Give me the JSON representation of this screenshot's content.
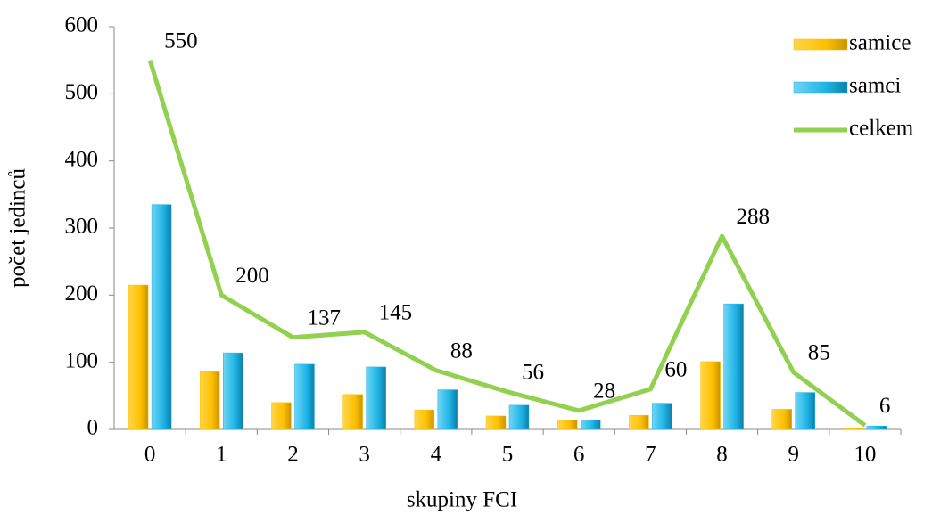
{
  "chart_data": {
    "type": "bar-line",
    "x_label": "skupiny FCI",
    "y_label": "počet jedinců",
    "categories": [
      "0",
      "1",
      "2",
      "3",
      "4",
      "5",
      "6",
      "7",
      "8",
      "9",
      "10"
    ],
    "series": [
      {
        "name": "samice",
        "type": "bar",
        "color": "#FFC000",
        "values": [
          215,
          86,
          40,
          52,
          29,
          20,
          14,
          21,
          101,
          30,
          1
        ]
      },
      {
        "name": "samci",
        "type": "bar",
        "color": "#1EB4E6",
        "values": [
          335,
          114,
          97,
          93,
          59,
          36,
          14,
          39,
          187,
          55,
          5
        ]
      },
      {
        "name": "celkem",
        "type": "line",
        "color": "#92D050",
        "values": [
          550,
          200,
          137,
          145,
          88,
          56,
          28,
          60,
          288,
          85,
          6
        ],
        "data_labels": true
      }
    ],
    "ylim": [
      0,
      600
    ],
    "yticks": [
      0,
      100,
      200,
      300,
      400,
      500,
      600
    ]
  }
}
